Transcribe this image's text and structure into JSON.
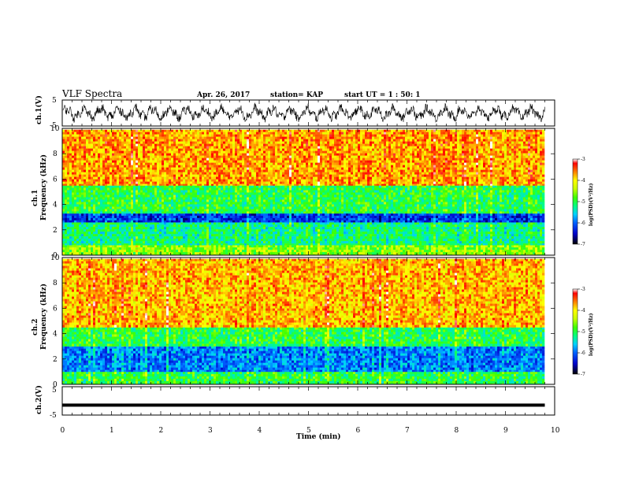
{
  "header": {
    "title": "VLF Spectra",
    "date": "Apr. 26, 2017",
    "station": "station= KAP",
    "start_ut": "start  UT =   1 : 50: 1"
  },
  "chart_data": [
    {
      "type": "line",
      "ylabel": "ch.1(V)",
      "ylim": [
        -5,
        5
      ],
      "yticks": [
        "5",
        "-5"
      ],
      "description_free": true,
      "xlim": [
        0,
        10
      ]
    },
    {
      "type": "heatmap",
      "ylabel": "ch.1\nFrequency (kHz)",
      "ylabel_line1": "ch.1",
      "ylabel_line2": "Frequency (kHz)",
      "ylim": [
        0,
        10
      ],
      "yticks": [
        "0",
        "2",
        "4",
        "6",
        "8",
        "10"
      ],
      "xlim": [
        0,
        10
      ],
      "colorbar": {
        "label": "log(PSD)(V²/Hz)",
        "ticks": [
          "-3",
          "-4",
          "-5",
          "-6",
          "-7"
        ],
        "range": [
          -7,
          -3
        ]
      },
      "bands": [
        {
          "f": [
            0,
            0.8
          ],
          "level": -4.6
        },
        {
          "f": [
            0.8,
            2.6
          ],
          "level": -5.2
        },
        {
          "f": [
            2.6,
            3.3
          ],
          "level": -6.2
        },
        {
          "f": [
            3.3,
            5.5
          ],
          "level": -5.0
        },
        {
          "f": [
            5.5,
            9.9
          ],
          "level": -3.7
        }
      ]
    },
    {
      "type": "heatmap",
      "ylabel_line1": "ch.2",
      "ylabel_line2": "Frequency (kHz)",
      "ylim": [
        0,
        10
      ],
      "yticks": [
        "0",
        "2",
        "4",
        "6",
        "8",
        "10"
      ],
      "xlim": [
        0,
        10
      ],
      "colorbar": {
        "label": "log(PSD)(V²/Hz)",
        "ticks": [
          "-3",
          "-4",
          "-5",
          "-6",
          "-7"
        ],
        "range": [
          -7,
          -3
        ]
      },
      "bands": [
        {
          "f": [
            0,
            1.0
          ],
          "level": -5.0
        },
        {
          "f": [
            1.0,
            3.0
          ],
          "level": -5.9
        },
        {
          "f": [
            3.0,
            4.5
          ],
          "level": -5.0
        },
        {
          "f": [
            4.5,
            9.9
          ],
          "level": -3.8
        }
      ]
    },
    {
      "type": "line",
      "ylabel": "ch.2(V)",
      "ylim": [
        -5,
        5
      ],
      "yticks": [
        "5",
        "-5"
      ],
      "xlim": [
        0,
        10
      ],
      "xlabel": "Time (min)",
      "xticks": [
        "0",
        "1",
        "2",
        "3",
        "4",
        "5",
        "6",
        "7",
        "8",
        "9",
        "10"
      ],
      "constant_value": -1.5,
      "data_end": 9.8
    }
  ]
}
